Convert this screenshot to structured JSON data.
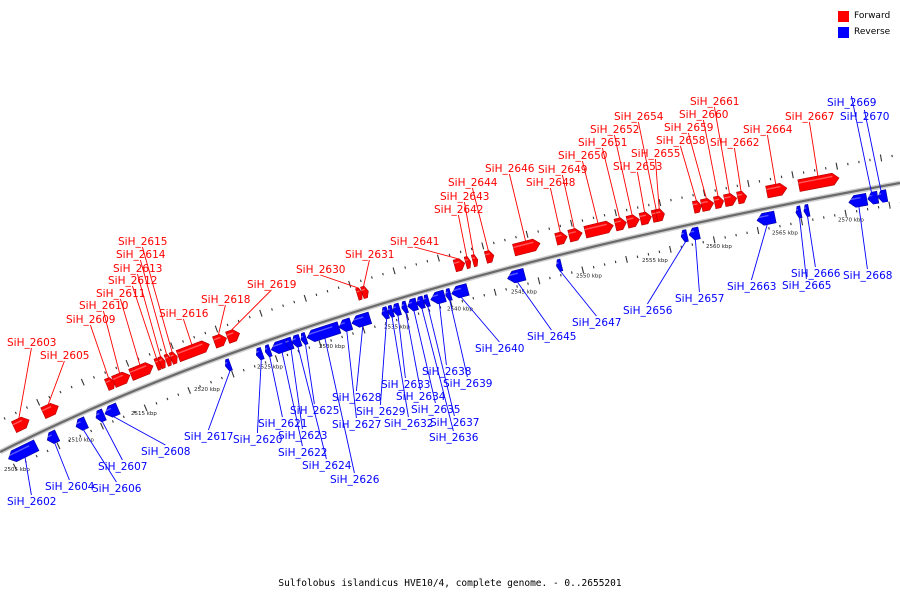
{
  "caption": "Sulfolobus islandicus HVE10/4, complete genome. - 0..2655201",
  "legend": {
    "forward": {
      "label": "Forward",
      "color": "#ff0000"
    },
    "reverse": {
      "label": "Reverse",
      "color": "#0000ff"
    }
  },
  "colors": {
    "forward": "#ff0000",
    "reverse": "#0000ff",
    "backbone": "#888888"
  },
  "kbp_ticks": [
    "2505 kbp",
    "2510 kbp",
    "2515 kbp",
    "2520 kbp",
    "2525 kbp",
    "2530 kbp",
    "2535 kbp",
    "2540 kbp",
    "2545 kbp",
    "2550 kbp",
    "2555 kbp",
    "2560 kbp",
    "2565 kbp",
    "2570 kbp"
  ],
  "genes": [
    {
      "name": "SiH_2602",
      "strand": "reverse"
    },
    {
      "name": "SiH_2603",
      "strand": "forward"
    },
    {
      "name": "SiH_2604",
      "strand": "reverse"
    },
    {
      "name": "SiH_2605",
      "strand": "forward"
    },
    {
      "name": "SiH_2606",
      "strand": "reverse"
    },
    {
      "name": "SiH_2607",
      "strand": "reverse"
    },
    {
      "name": "SiH_2608",
      "strand": "reverse"
    },
    {
      "name": "SiH_2609",
      "strand": "forward"
    },
    {
      "name": "SiH_2610",
      "strand": "forward"
    },
    {
      "name": "SiH_2611",
      "strand": "forward"
    },
    {
      "name": "SiH_2612",
      "strand": "forward"
    },
    {
      "name": "SiH_2613",
      "strand": "forward"
    },
    {
      "name": "SiH_2614",
      "strand": "forward"
    },
    {
      "name": "SiH_2615",
      "strand": "forward"
    },
    {
      "name": "SiH_2616",
      "strand": "forward"
    },
    {
      "name": "SiH_2617",
      "strand": "reverse"
    },
    {
      "name": "SiH_2618",
      "strand": "forward"
    },
    {
      "name": "SiH_2619",
      "strand": "forward"
    },
    {
      "name": "SiH_2620",
      "strand": "reverse"
    },
    {
      "name": "SiH_2621",
      "strand": "reverse"
    },
    {
      "name": "SiH_2622",
      "strand": "reverse"
    },
    {
      "name": "SiH_2623",
      "strand": "reverse"
    },
    {
      "name": "SiH_2624",
      "strand": "reverse"
    },
    {
      "name": "SiH_2625",
      "strand": "reverse"
    },
    {
      "name": "SiH_2626",
      "strand": "reverse"
    },
    {
      "name": "SiH_2627",
      "strand": "reverse"
    },
    {
      "name": "SiH_2628",
      "strand": "reverse"
    },
    {
      "name": "SiH_2629",
      "strand": "reverse"
    },
    {
      "name": "SiH_2630",
      "strand": "forward"
    },
    {
      "name": "SiH_2631",
      "strand": "forward"
    },
    {
      "name": "SiH_2632",
      "strand": "reverse"
    },
    {
      "name": "SiH_2633",
      "strand": "reverse"
    },
    {
      "name": "SiH_2634",
      "strand": "reverse"
    },
    {
      "name": "SiH_2635",
      "strand": "reverse"
    },
    {
      "name": "SiH_2636",
      "strand": "reverse"
    },
    {
      "name": "SiH_2637",
      "strand": "reverse"
    },
    {
      "name": "SiH_2638",
      "strand": "reverse"
    },
    {
      "name": "SiH_2639",
      "strand": "reverse"
    },
    {
      "name": "SiH_2640",
      "strand": "reverse"
    },
    {
      "name": "SiH_2641",
      "strand": "forward"
    },
    {
      "name": "SiH_2642",
      "strand": "forward"
    },
    {
      "name": "SiH_2643",
      "strand": "forward"
    },
    {
      "name": "SiH_2644",
      "strand": "forward"
    },
    {
      "name": "SiH_2645",
      "strand": "reverse"
    },
    {
      "name": "SiH_2646",
      "strand": "forward"
    },
    {
      "name": "SiH_2647",
      "strand": "reverse"
    },
    {
      "name": "SiH_2648",
      "strand": "forward"
    },
    {
      "name": "SiH_2649",
      "strand": "forward"
    },
    {
      "name": "SiH_2650",
      "strand": "forward"
    },
    {
      "name": "SiH_2651",
      "strand": "forward"
    },
    {
      "name": "SiH_2652",
      "strand": "forward"
    },
    {
      "name": "SiH_2653",
      "strand": "forward"
    },
    {
      "name": "SiH_2654",
      "strand": "forward"
    },
    {
      "name": "SiH_2655",
      "strand": "forward"
    },
    {
      "name": "SiH_2656",
      "strand": "reverse"
    },
    {
      "name": "SiH_2657",
      "strand": "reverse"
    },
    {
      "name": "SiH_2658",
      "strand": "forward"
    },
    {
      "name": "SiH_2659",
      "strand": "forward"
    },
    {
      "name": "SiH_2660",
      "strand": "forward"
    },
    {
      "name": "SiH_2661",
      "strand": "forward"
    },
    {
      "name": "SiH_2662",
      "strand": "forward"
    },
    {
      "name": "SiH_2663",
      "strand": "reverse"
    },
    {
      "name": "SiH_2664",
      "strand": "forward"
    },
    {
      "name": "SiH_2665",
      "strand": "reverse"
    },
    {
      "name": "SiH_2666",
      "strand": "reverse"
    },
    {
      "name": "SiH_2667",
      "strand": "forward"
    },
    {
      "name": "SiH_2668",
      "strand": "reverse"
    },
    {
      "name": "SiH_2669",
      "strand": "reverse"
    },
    {
      "name": "SiH_2670",
      "strand": "reverse"
    }
  ]
}
